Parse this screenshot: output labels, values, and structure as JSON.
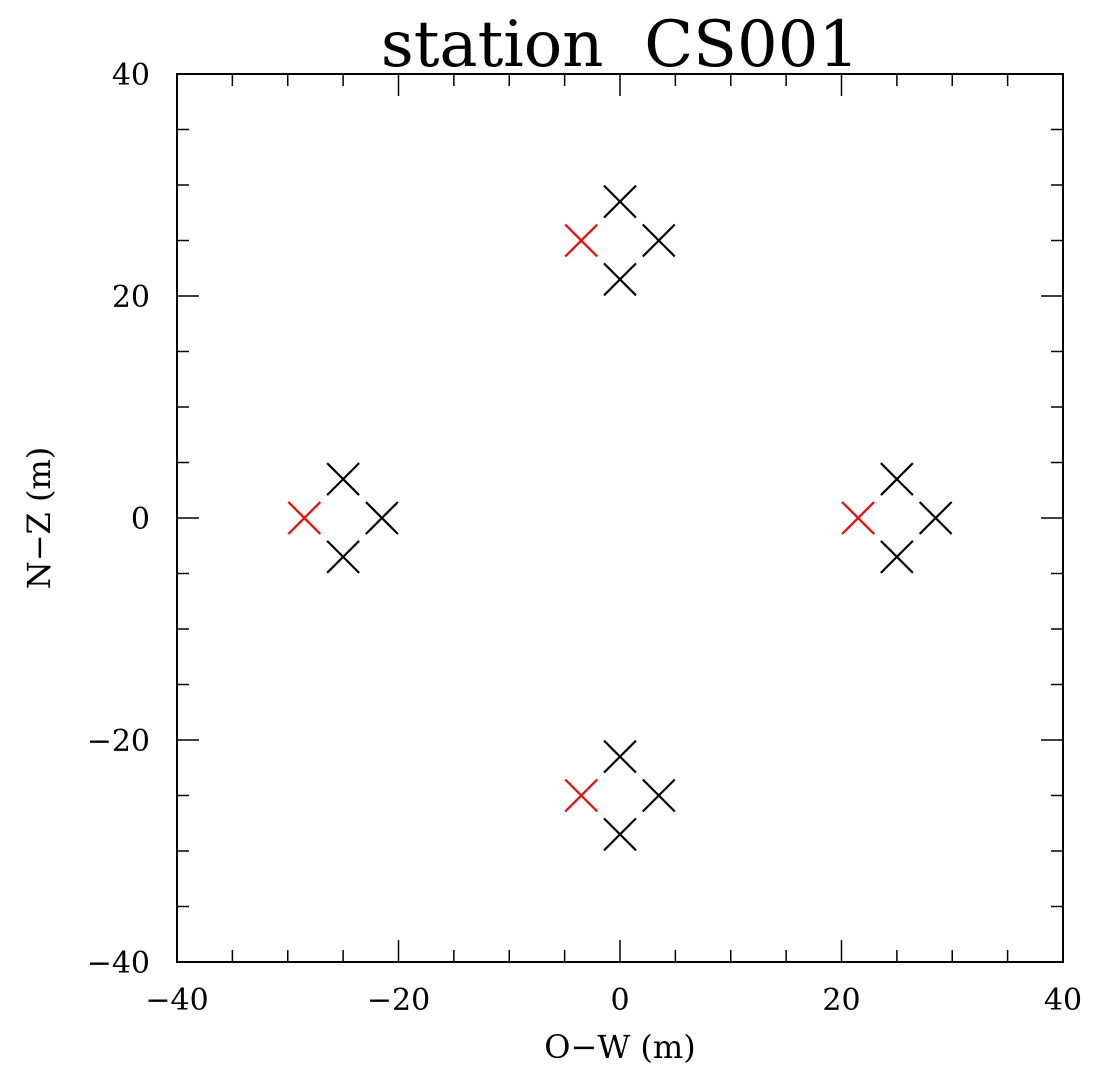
{
  "chart_data": {
    "type": "scatter",
    "title": "station  CS001",
    "xlabel": "O−W (m)",
    "ylabel": "N−Z (m)",
    "xlim": [
      -40,
      40
    ],
    "ylim": [
      -40,
      40
    ],
    "x_ticks": [
      -40,
      -20,
      0,
      20,
      40
    ],
    "y_ticks": [
      -40,
      -20,
      0,
      20,
      40
    ],
    "x_tick_labels": [
      "−40",
      "−20",
      "0",
      "20",
      "40"
    ],
    "y_tick_labels": [
      "−40",
      "−20",
      "0",
      "20",
      "40"
    ],
    "minor_tick_step": 5,
    "grid": false,
    "marker": "x",
    "series": [
      {
        "color": "#000000",
        "points": [
          {
            "x": 0,
            "y": 28.5
          },
          {
            "x": 3.5,
            "y": 25
          },
          {
            "x": 0,
            "y": 21.5
          },
          {
            "x": -25,
            "y": 3.5
          },
          {
            "x": -21.5,
            "y": 0
          },
          {
            "x": -25,
            "y": -3.5
          },
          {
            "x": 25,
            "y": 3.5
          },
          {
            "x": 28.5,
            "y": 0
          },
          {
            "x": 25,
            "y": -3.5
          },
          {
            "x": 0,
            "y": -21.5
          },
          {
            "x": 3.5,
            "y": -25
          },
          {
            "x": 0,
            "y": -28.5
          }
        ]
      },
      {
        "color": "#ff0000",
        "points": [
          {
            "x": -3.5,
            "y": 25
          },
          {
            "x": -28.5,
            "y": 0
          },
          {
            "x": 21.5,
            "y": 0
          },
          {
            "x": -3.5,
            "y": -25
          }
        ]
      }
    ]
  }
}
